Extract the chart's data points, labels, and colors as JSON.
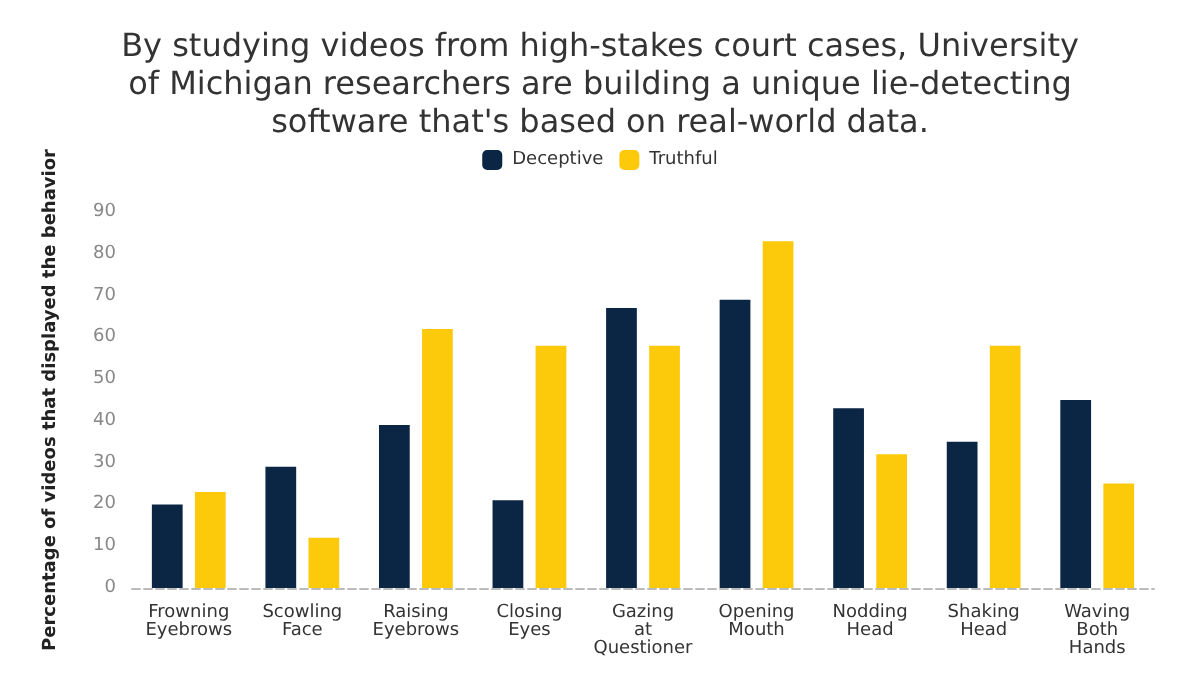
{
  "chart_data": {
    "type": "bar",
    "title": "By studying videos from high-stakes court cases, University\nof Michigan researchers are building a unique lie-detecting\nsoftware that's based on real-world data.",
    "ylabel": "Percentage of videos that displayed the behavior",
    "categories": [
      "Frowning\nEyebrows",
      "Scowling\nFace",
      "Raising\nEyebrows",
      "Closing\nEyes",
      "Gazing\nat\nQuestioner",
      "Opening\nMouth",
      "Nodding\nHead",
      "Shaking\nHead",
      "Waving\nBoth\nHands"
    ],
    "series": [
      {
        "name": "Deceptive",
        "color": "#0b2545",
        "values": [
          20,
          29,
          39,
          21,
          67,
          69,
          43,
          35,
          45
        ]
      },
      {
        "name": "Truthful",
        "color": "#fdc90b",
        "values": [
          23,
          12,
          62,
          58,
          58,
          83,
          32,
          58,
          25
        ]
      }
    ],
    "ylim": [
      0,
      90
    ],
    "yticks": [
      0,
      10,
      20,
      30,
      40,
      50,
      60,
      70,
      80,
      90
    ],
    "grid": false,
    "legend": "top"
  }
}
